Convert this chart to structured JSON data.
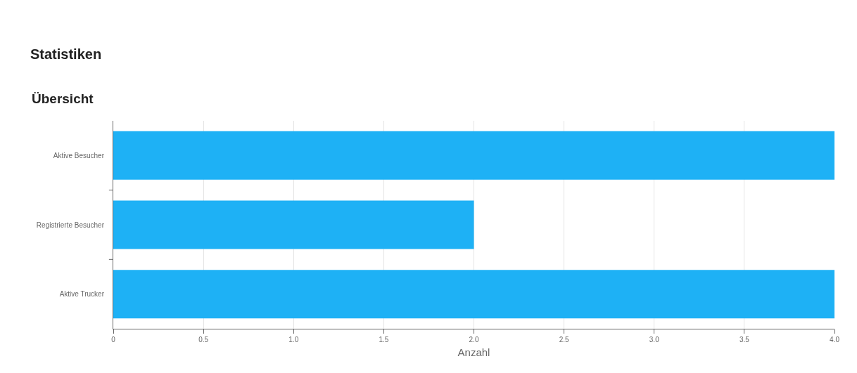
{
  "chart_data": {
    "type": "bar",
    "orientation": "horizontal",
    "title": "Statistiken",
    "subtitle": "Übersicht",
    "xlabel": "Anzahl",
    "categories": [
      "Aktive Besucher",
      "Registrierte Besucher",
      "Aktive Trucker"
    ],
    "values": [
      4,
      2,
      4
    ],
    "color": "#1eb1f5",
    "xlim": [
      0,
      4
    ],
    "xticks": [
      0,
      0.5,
      {
        "value": 1,
        "label": "1.0"
      },
      1.5,
      {
        "value": 2,
        "label": "2.0"
      },
      2.5,
      {
        "value": 3,
        "label": "3.0"
      },
      3.5,
      {
        "value": 4,
        "label": "4.0"
      }
    ],
    "grid": "x"
  }
}
